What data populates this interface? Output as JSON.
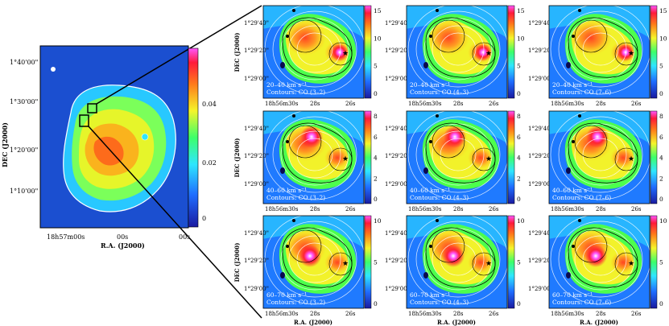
{
  "overview": {
    "ylabel": "DEC (J2000)",
    "xlabel": "R.A. (J2000)",
    "yticks": [
      "1°40'00\"",
      "1°30'00\"",
      "1°20'00\"",
      "1°10'00\""
    ],
    "xticks": [
      "18h57m00s",
      "00s",
      "00s"
    ],
    "colorbar_ticks": [
      "0.04",
      "0.02",
      "0"
    ]
  },
  "panel_axes": {
    "ylabel": "DEC (J2000)",
    "xlabel": "R.A. (J2000)",
    "yticks": [
      "1°29'40\"",
      "1°29'20\"",
      "1°29'00\""
    ],
    "xticks": [
      "18h56m30s",
      "28s",
      "26s"
    ]
  },
  "rows": [
    {
      "velocity": "20–40 km s⁻¹",
      "colorbar_ticks": [
        "15",
        "10",
        "5",
        "0"
      ]
    },
    {
      "velocity": "40–60 km s⁻¹",
      "colorbar_ticks": [
        "8",
        "6",
        "4",
        "2",
        "0"
      ]
    },
    {
      "velocity": "60–70 km s⁻¹",
      "colorbar_ticks": [
        "10",
        "5",
        "0"
      ]
    }
  ],
  "columns": [
    {
      "contours": "Contours: CO (3–2)"
    },
    {
      "contours": "Contours: CO (4–3)"
    },
    {
      "contours": "Contours: CO (7–6)"
    }
  ]
}
